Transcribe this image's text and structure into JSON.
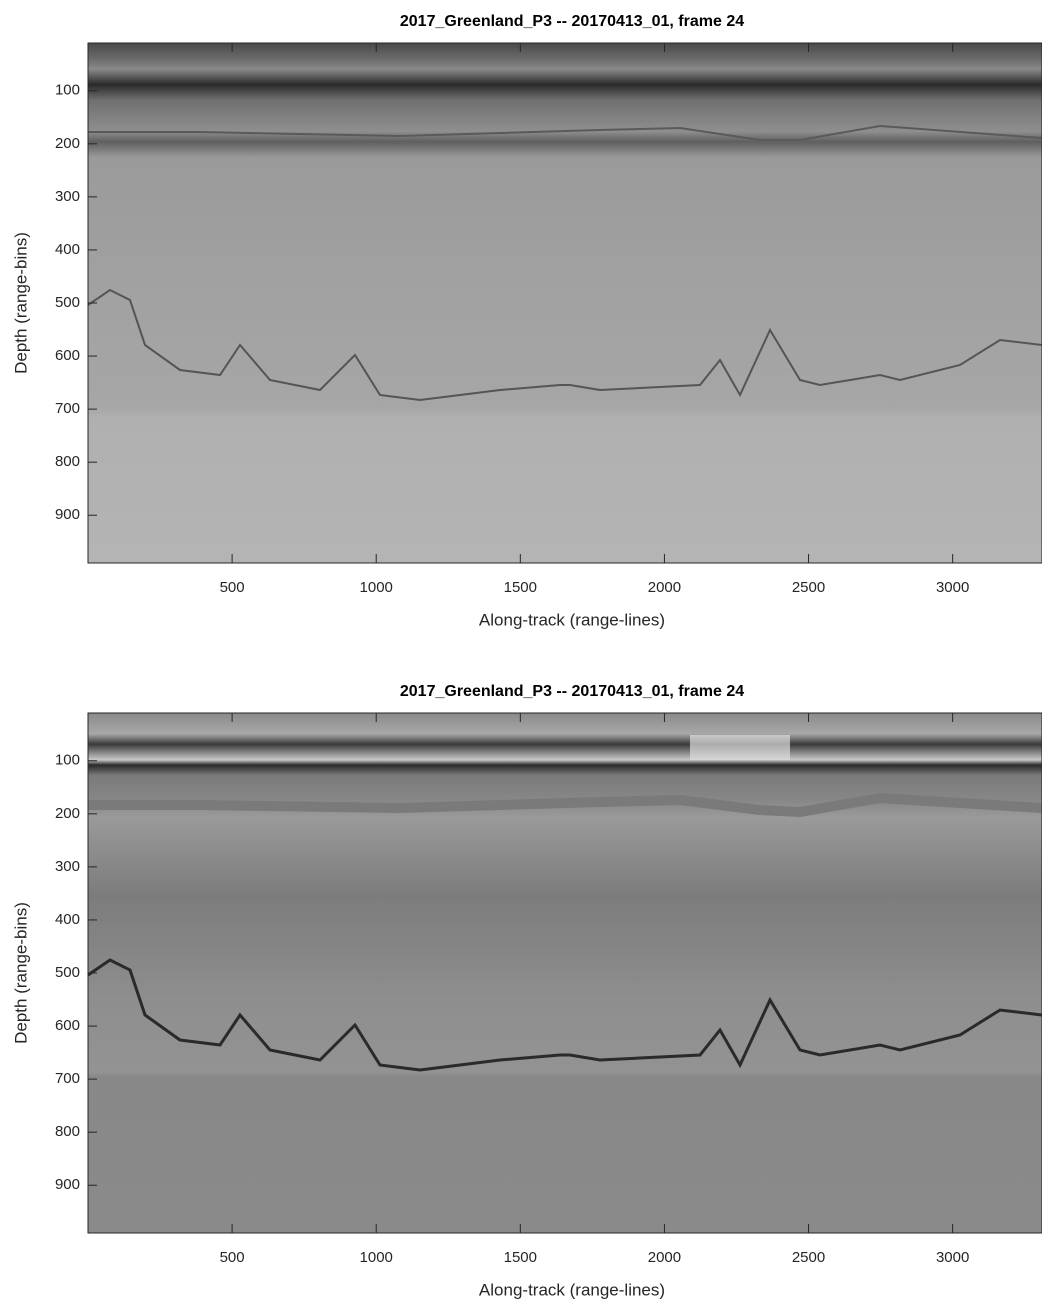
{
  "chart_data": [
    {
      "type": "image",
      "title": "2017_Greenland_P3 -- 20170413_01, frame 24",
      "x_label": "Along-track (range-lines)",
      "y_label": "Depth (range-bins)",
      "colormap": "gray",
      "xlim": [
        0,
        3310
      ],
      "xticks": [
        500,
        1000,
        1500,
        2000,
        2500,
        3000
      ],
      "ylim": [
        10,
        990
      ],
      "yticks": [
        100,
        200,
        300,
        400,
        500,
        600,
        700,
        800,
        900
      ],
      "y_reversed": true
    },
    {
      "type": "image",
      "title": "2017_Greenland_P3 -- 20170413_01, frame 24",
      "x_label": "Along-track (range-lines)",
      "y_label": "Depth (range-bins)",
      "colormap": "gray",
      "xlim": [
        0,
        3310
      ],
      "xticks": [
        500,
        1000,
        1500,
        2000,
        2500,
        3000
      ],
      "ylim": [
        10,
        990
      ],
      "yticks": [
        100,
        200,
        300,
        400,
        500,
        600,
        700,
        800,
        900
      ],
      "y_reversed": true
    }
  ]
}
